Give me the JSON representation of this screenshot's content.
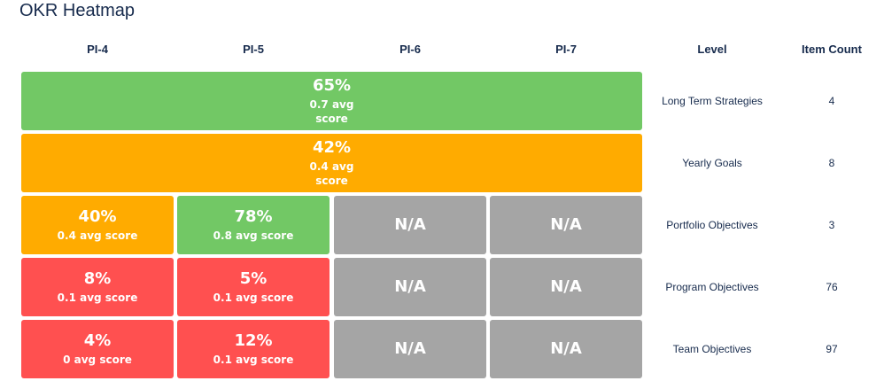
{
  "title": "OKR Heatmap",
  "chart_data": {
    "type": "heatmap",
    "columns": [
      "PI-4",
      "PI-5",
      "PI-6",
      "PI-7"
    ],
    "extra_headers": {
      "level": "Level",
      "item_count": "Item Count"
    },
    "colors": {
      "green": "#72c865",
      "orange": "#ffab00",
      "red": "#ff5050",
      "gray": "#a5a5a5"
    },
    "rows": [
      {
        "level": "Long Term Strategies",
        "item_count": "4",
        "span_all": true,
        "cells": [
          {
            "pct": "65%",
            "avg": "0.7 avg score",
            "color": "green"
          }
        ]
      },
      {
        "level": "Yearly Goals",
        "item_count": "8",
        "span_all": true,
        "cells": [
          {
            "pct": "42%",
            "avg": "0.4 avg score",
            "color": "orange"
          }
        ]
      },
      {
        "level": "Portfolio Objectives",
        "item_count": "3",
        "span_all": false,
        "cells": [
          {
            "pct": "40%",
            "avg": "0.4 avg score",
            "color": "orange"
          },
          {
            "pct": "78%",
            "avg": "0.8 avg score",
            "color": "green"
          },
          {
            "na": "N/A",
            "color": "gray"
          },
          {
            "na": "N/A",
            "color": "gray"
          }
        ]
      },
      {
        "level": "Program Objectives",
        "item_count": "76",
        "span_all": false,
        "cells": [
          {
            "pct": "8%",
            "avg": "0.1 avg score",
            "color": "red"
          },
          {
            "pct": "5%",
            "avg": "0.1 avg score",
            "color": "red"
          },
          {
            "na": "N/A",
            "color": "gray"
          },
          {
            "na": "N/A",
            "color": "gray"
          }
        ]
      },
      {
        "level": "Team Objectives",
        "item_count": "97",
        "span_all": false,
        "cells": [
          {
            "pct": "4%",
            "avg": "0 avg score",
            "color": "red"
          },
          {
            "pct": "12%",
            "avg": "0.1 avg score",
            "color": "red"
          },
          {
            "na": "N/A",
            "color": "gray"
          },
          {
            "na": "N/A",
            "color": "gray"
          }
        ]
      }
    ]
  }
}
